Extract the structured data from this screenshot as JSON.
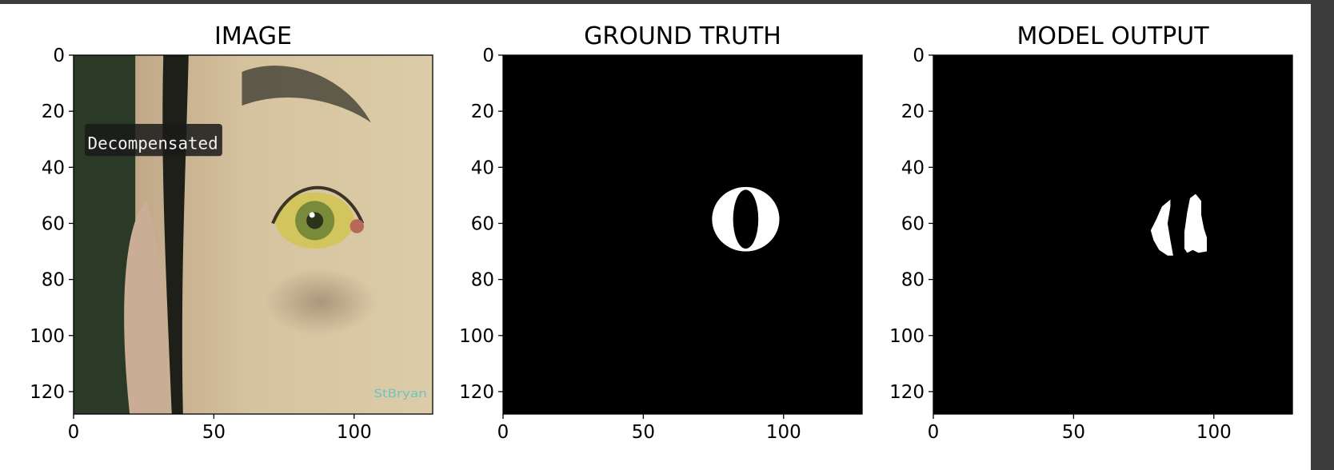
{
  "chart_data": [
    {
      "type": "image",
      "title": "IMAGE",
      "image": {
        "caption_text": "Decompensated",
        "watermark_text": "StBryan",
        "palette": {
          "skin": "#d6c3a0",
          "skin_shadow": "#b59a7b",
          "hair": "#1d1f18",
          "background": "#2b3a27",
          "iris": "#7a8a3b",
          "sclera": "#d3c55e",
          "pupil": "#2c311c",
          "caption_bg": "#1a1a1a"
        }
      },
      "xlim": [
        0,
        128
      ],
      "ylim": [
        128,
        0
      ],
      "xticks": [
        0,
        50,
        100
      ],
      "yticks": [
        0,
        20,
        40,
        60,
        80,
        100,
        120
      ]
    },
    {
      "type": "mask",
      "title": "GROUND TRUTH",
      "mask": {
        "shape": "ring",
        "center": [
          86.5,
          58.5
        ],
        "outer_radii": [
          12,
          11.5
        ],
        "inner_radii": [
          4.5,
          10.5
        ],
        "foreground": "#ffffff",
        "background": "#000000"
      },
      "xlim": [
        0,
        128
      ],
      "ylim": [
        128,
        0
      ],
      "xticks": [
        0,
        50,
        100
      ],
      "yticks": [
        0,
        20,
        40,
        60,
        80,
        100,
        120
      ]
    },
    {
      "type": "mask",
      "title": "MODEL OUTPUT",
      "mask": {
        "shape": "two_regions",
        "regions": [
          [
            [
              84.5,
              51.5
            ],
            [
              81.5,
              54
            ],
            [
              79.5,
              58.5
            ],
            [
              77.5,
              62.5
            ],
            [
              78.5,
              66
            ],
            [
              80.5,
              69.5
            ],
            [
              83.5,
              71.5
            ],
            [
              85.5,
              71.5
            ],
            [
              84.5,
              66
            ],
            [
              83.5,
              60
            ],
            [
              84.5,
              54
            ]
          ],
          [
            [
              93.5,
              49.5
            ],
            [
              95.5,
              52
            ],
            [
              95.5,
              57
            ],
            [
              96.5,
              62
            ],
            [
              97.5,
              65
            ],
            [
              97.5,
              70
            ],
            [
              94.5,
              70.5
            ],
            [
              92.5,
              69.5
            ],
            [
              90.5,
              70.5
            ],
            [
              89.5,
              69
            ],
            [
              89.5,
              63
            ],
            [
              90.5,
              56
            ],
            [
              91.5,
              51
            ]
          ]
        ],
        "foreground": "#ffffff",
        "background": "#000000"
      },
      "xlim": [
        0,
        128
      ],
      "ylim": [
        128,
        0
      ],
      "xticks": [
        0,
        50,
        100
      ],
      "yticks": [
        0,
        20,
        40,
        60,
        80,
        100,
        120
      ]
    }
  ]
}
